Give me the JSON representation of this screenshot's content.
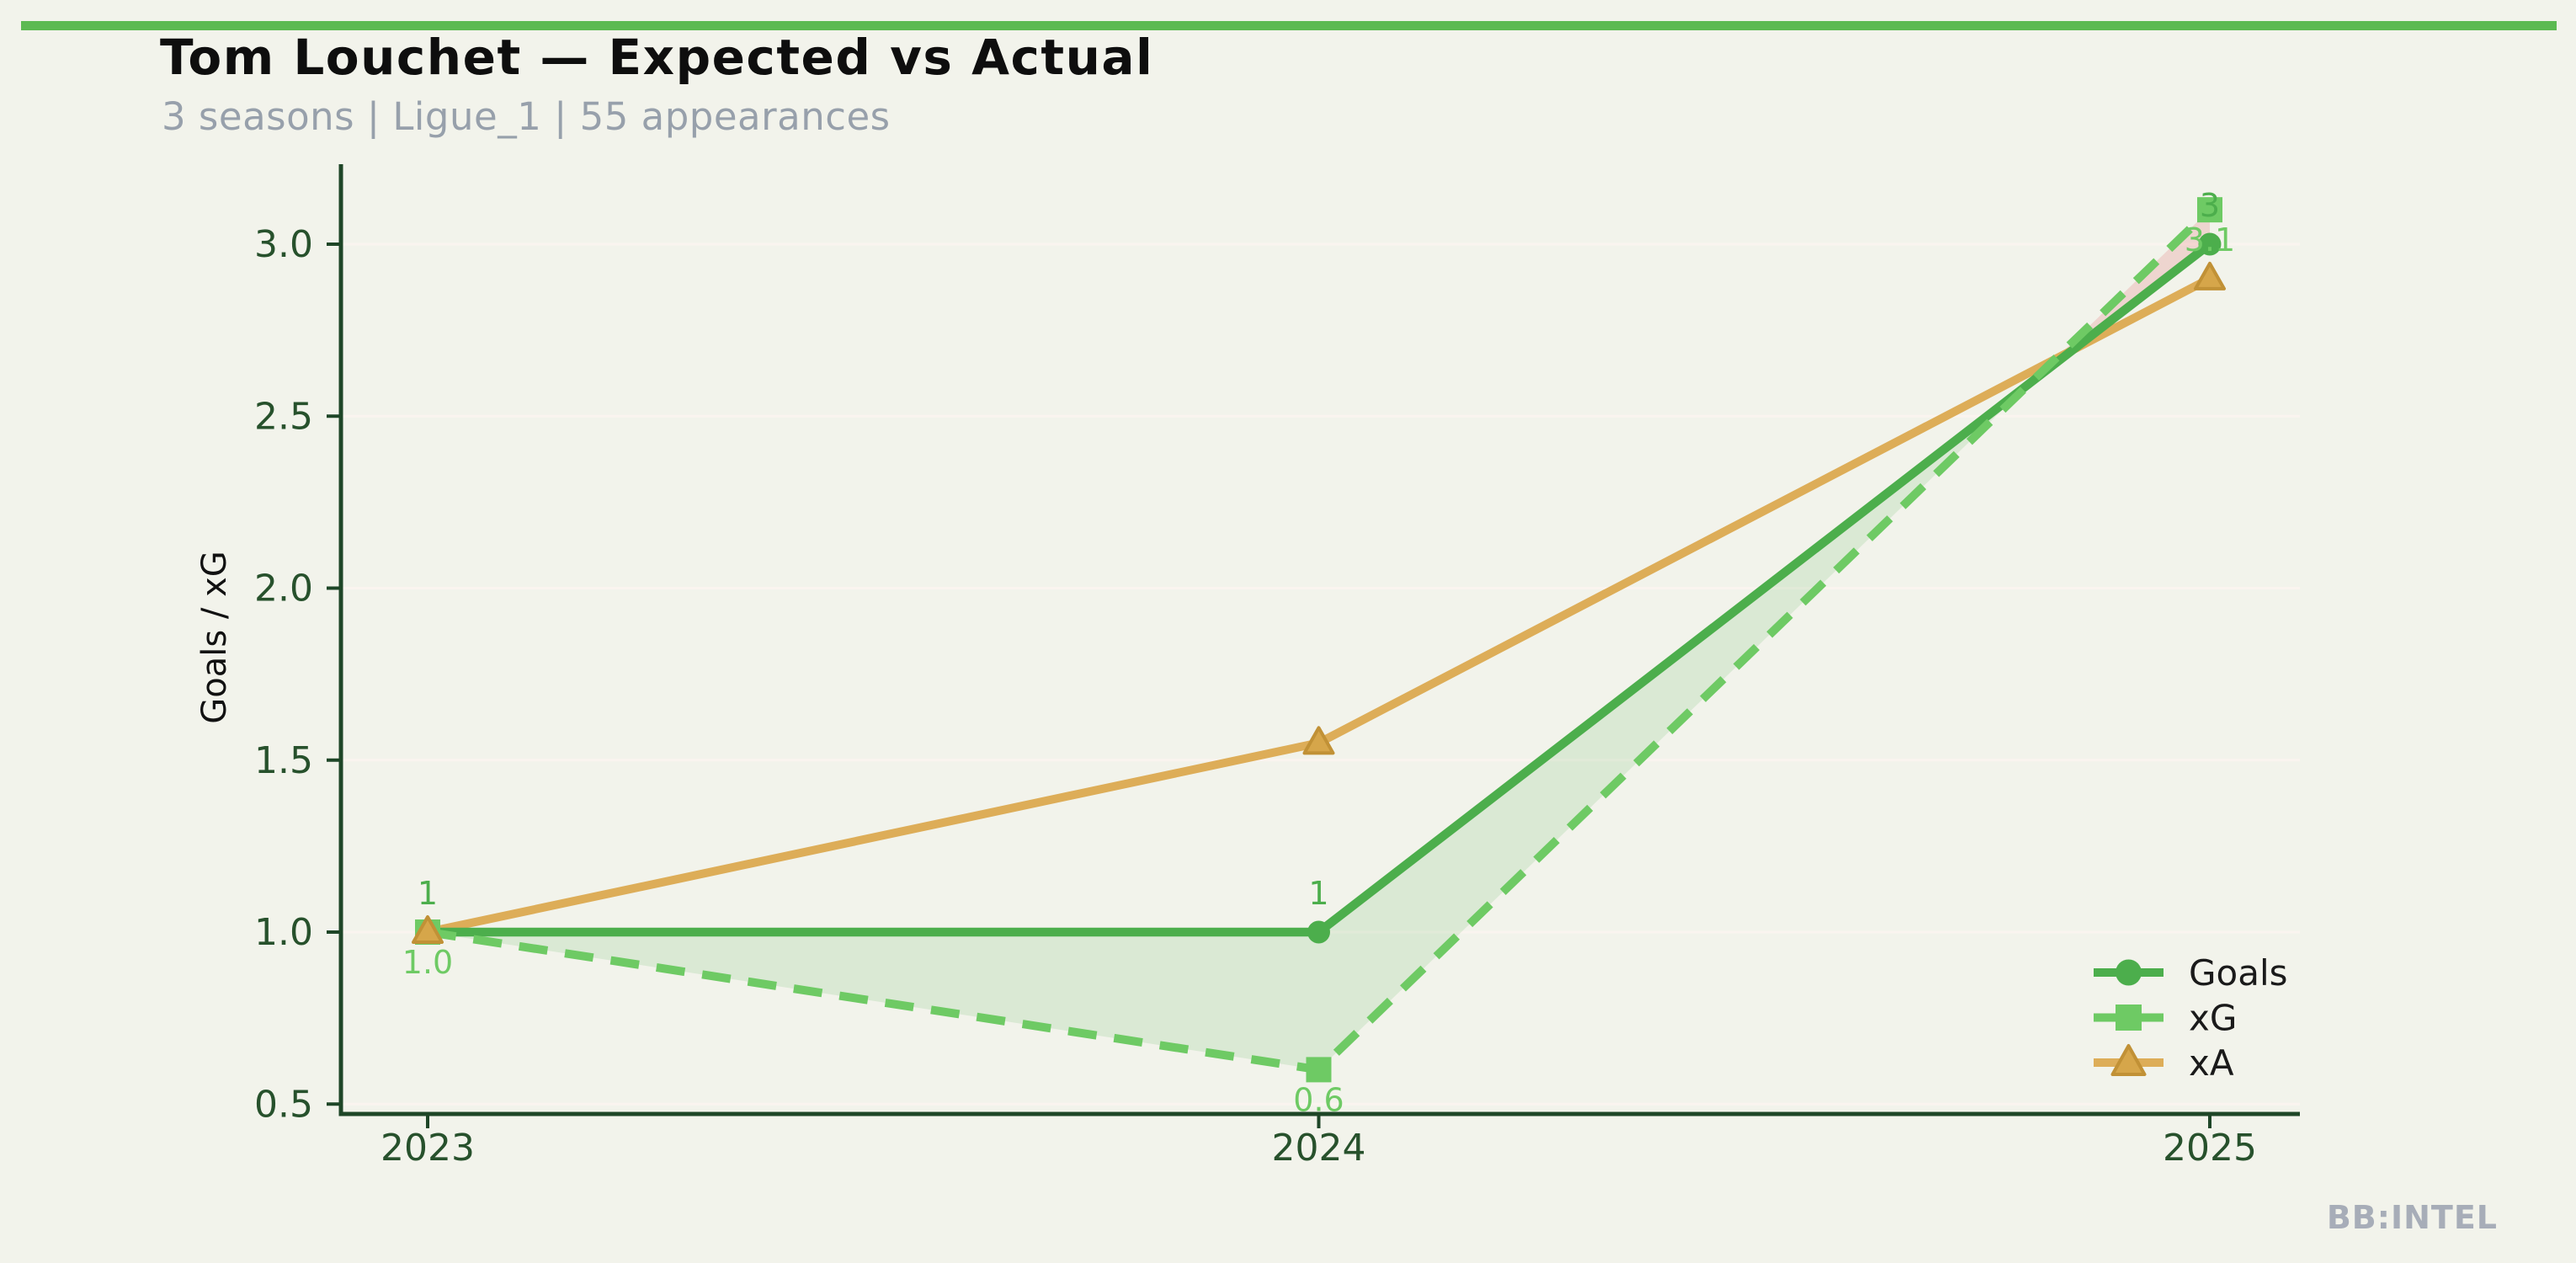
{
  "page": {
    "title": "Tom Louchet — Expected vs Actual",
    "subtitle": "3 seasons | Ligue_1 | 55 appearances",
    "watermark": "BB:INTEL",
    "background_color": "#f2f3eb",
    "accent_bar_color": "#5cba52",
    "title_color": "#0e0e0e",
    "subtitle_color": "#97a0ab",
    "watermark_color": "#a7adb8"
  },
  "chart_data": {
    "type": "line",
    "title": "Tom Louchet — Expected vs Actual",
    "subtitle": "3 seasons | Ligue_1 | 55 appearances",
    "xlabel": "",
    "ylabel": "Goals / xG",
    "categories": [
      "2023",
      "2024",
      "2025"
    ],
    "yticks": [
      "0.5",
      "1.0",
      "1.5",
      "2.0",
      "2.5",
      "3.0"
    ],
    "ylim": [
      0.47,
      3.25
    ],
    "grid": "horizontal-faint",
    "legend_position": "lower-right",
    "series": [
      {
        "name": "Goals",
        "values": [
          1,
          1,
          3
        ],
        "labels": [
          "1",
          "1",
          "3"
        ],
        "label_position": "above",
        "color": "#4cae4c",
        "marker": "circle",
        "line_style": "solid"
      },
      {
        "name": "xG",
        "values": [
          1.0,
          0.6,
          3.1
        ],
        "labels": [
          "1.0",
          "0.6",
          "3.1"
        ],
        "label_position": "below",
        "color": "#6eca64",
        "marker": "square",
        "line_style": "dashed"
      },
      {
        "name": "xA",
        "values": [
          1.0,
          1.55,
          2.9
        ],
        "labels": [],
        "label_position": "none",
        "color": "#ddad58",
        "marker": "triangle",
        "marker_fill": "#d6a64a",
        "marker_edge": "#c19136",
        "line_style": "solid"
      }
    ],
    "fill_between": {
      "upper_is_first": "Goals vs xG",
      "color_when_goals_above": "#4cae4c",
      "color_when_xg_above": "#e06060",
      "opacity_green": 0.14,
      "opacity_pink": 0.2
    },
    "style": {
      "axis_color": "#1e4627",
      "tick_label_color": "#27512c",
      "grid_color": "#faf4ef",
      "legend_text_color": "#1a1a1a",
      "ylabel_color": "#111111"
    }
  }
}
